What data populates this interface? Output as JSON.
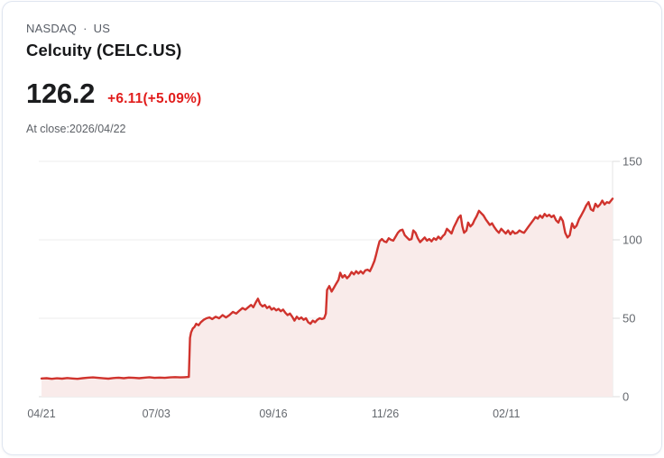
{
  "header": {
    "exchange": "NASDAQ",
    "separator": "·",
    "region": "US",
    "title": "Celcuity (CELC.US)",
    "price": "126.2",
    "change": "+6.11(+5.09%)",
    "as_of": "At close:2026/04/22"
  },
  "colors": {
    "line": "#d0332d",
    "fill": "#f9ebea",
    "change_text": "#e11d1c",
    "grid": "#ececec",
    "baseline": "#dcdcdc",
    "axis": "#e4e4e4",
    "tick_label": "#64686e"
  },
  "chart_data": {
    "type": "area",
    "title": "Celcuity (CELC.US) 1-year price",
    "xlabel": "",
    "ylabel": "",
    "ylim": [
      0,
      150
    ],
    "y_ticks": [
      0,
      50,
      100,
      150
    ],
    "x_tick_labels": [
      "04/21",
      "07/03",
      "09/16",
      "11/26",
      "02/11"
    ],
    "x_tick_positions": [
      0,
      0.201,
      0.406,
      0.602,
      0.814
    ],
    "grid": "horizontal",
    "legend": "none",
    "points": [
      [
        0.0,
        11.6
      ],
      [
        0.009,
        11.8
      ],
      [
        0.018,
        11.4
      ],
      [
        0.027,
        11.7
      ],
      [
        0.036,
        11.5
      ],
      [
        0.045,
        11.9
      ],
      [
        0.054,
        11.6
      ],
      [
        0.063,
        11.4
      ],
      [
        0.072,
        11.8
      ],
      [
        0.081,
        12.1
      ],
      [
        0.09,
        12.3
      ],
      [
        0.099,
        12.0
      ],
      [
        0.108,
        11.7
      ],
      [
        0.117,
        11.5
      ],
      [
        0.126,
        11.9
      ],
      [
        0.135,
        12.1
      ],
      [
        0.144,
        11.8
      ],
      [
        0.153,
        12.2
      ],
      [
        0.162,
        12.0
      ],
      [
        0.171,
        11.8
      ],
      [
        0.18,
        12.1
      ],
      [
        0.189,
        12.4
      ],
      [
        0.198,
        12.0
      ],
      [
        0.207,
        12.2
      ],
      [
        0.216,
        12.0
      ],
      [
        0.225,
        12.3
      ],
      [
        0.234,
        12.5
      ],
      [
        0.243,
        12.3
      ],
      [
        0.25,
        12.4
      ],
      [
        0.258,
        12.6
      ],
      [
        0.26,
        37.5
      ],
      [
        0.262,
        41.0
      ],
      [
        0.265,
        43.5
      ],
      [
        0.268,
        44.5
      ],
      [
        0.271,
        46.5
      ],
      [
        0.275,
        45.5
      ],
      [
        0.279,
        47.5
      ],
      [
        0.284,
        49.0
      ],
      [
        0.289,
        50.0
      ],
      [
        0.294,
        50.5
      ],
      [
        0.299,
        49.5
      ],
      [
        0.305,
        51.0
      ],
      [
        0.311,
        50.0
      ],
      [
        0.317,
        52.0
      ],
      [
        0.323,
        50.5
      ],
      [
        0.329,
        52.0
      ],
      [
        0.335,
        54.0
      ],
      [
        0.341,
        53.0
      ],
      [
        0.347,
        55.0
      ],
      [
        0.352,
        56.5
      ],
      [
        0.357,
        55.5
      ],
      [
        0.362,
        57.0
      ],
      [
        0.367,
        58.5
      ],
      [
        0.371,
        57.0
      ],
      [
        0.375,
        60.0
      ],
      [
        0.379,
        62.5
      ],
      [
        0.383,
        59.0
      ],
      [
        0.387,
        57.5
      ],
      [
        0.391,
        58.5
      ],
      [
        0.395,
        56.5
      ],
      [
        0.399,
        57.5
      ],
      [
        0.403,
        55.5
      ],
      [
        0.407,
        56.5
      ],
      [
        0.411,
        55.0
      ],
      [
        0.415,
        56.0
      ],
      [
        0.419,
        54.5
      ],
      [
        0.423,
        55.5
      ],
      [
        0.427,
        53.5
      ],
      [
        0.431,
        52.0
      ],
      [
        0.435,
        53.0
      ],
      [
        0.439,
        51.0
      ],
      [
        0.443,
        48.5
      ],
      [
        0.447,
        51.0
      ],
      [
        0.451,
        49.5
      ],
      [
        0.455,
        50.5
      ],
      [
        0.459,
        49.0
      ],
      [
        0.463,
        50.0
      ],
      [
        0.467,
        47.5
      ],
      [
        0.471,
        46.5
      ],
      [
        0.475,
        48.5
      ],
      [
        0.479,
        47.5
      ],
      [
        0.483,
        49.0
      ],
      [
        0.487,
        50.0
      ],
      [
        0.491,
        49.5
      ],
      [
        0.495,
        50.0
      ],
      [
        0.498,
        53.0
      ],
      [
        0.5,
        68.0
      ],
      [
        0.504,
        70.5
      ],
      [
        0.508,
        67.0
      ],
      [
        0.512,
        69.5
      ],
      [
        0.516,
        72.0
      ],
      [
        0.52,
        74.5
      ],
      [
        0.523,
        79.0
      ],
      [
        0.527,
        76.0
      ],
      [
        0.531,
        77.5
      ],
      [
        0.535,
        75.5
      ],
      [
        0.539,
        77.0
      ],
      [
        0.543,
        79.5
      ],
      [
        0.547,
        78.0
      ],
      [
        0.551,
        80.0
      ],
      [
        0.555,
        78.5
      ],
      [
        0.559,
        80.0
      ],
      [
        0.563,
        78.5
      ],
      [
        0.567,
        80.5
      ],
      [
        0.571,
        81.0
      ],
      [
        0.575,
        80.0
      ],
      [
        0.579,
        83.0
      ],
      [
        0.583,
        86.5
      ],
      [
        0.586,
        90.5
      ],
      [
        0.589,
        95.0
      ],
      [
        0.592,
        99.0
      ],
      [
        0.596,
        100.5
      ],
      [
        0.6,
        99.0
      ],
      [
        0.604,
        98.5
      ],
      [
        0.608,
        101.0
      ],
      [
        0.612,
        100.0
      ],
      [
        0.616,
        99.5
      ],
      [
        0.62,
        102.0
      ],
      [
        0.624,
        104.5
      ],
      [
        0.628,
        106.0
      ],
      [
        0.632,
        106.5
      ],
      [
        0.636,
        103.0
      ],
      [
        0.64,
        101.5
      ],
      [
        0.644,
        100.0
      ],
      [
        0.648,
        100.5
      ],
      [
        0.651,
        106.0
      ],
      [
        0.655,
        104.5
      ],
      [
        0.659,
        101.0
      ],
      [
        0.663,
        98.5
      ],
      [
        0.667,
        100.0
      ],
      [
        0.671,
        101.5
      ],
      [
        0.675,
        99.5
      ],
      [
        0.679,
        100.5
      ],
      [
        0.683,
        99.0
      ],
      [
        0.687,
        101.0
      ],
      [
        0.691,
        100.0
      ],
      [
        0.695,
        102.0
      ],
      [
        0.699,
        100.5
      ],
      [
        0.703,
        102.5
      ],
      [
        0.706,
        103.5
      ],
      [
        0.71,
        107.0
      ],
      [
        0.714,
        105.5
      ],
      [
        0.718,
        104.0
      ],
      [
        0.722,
        108.0
      ],
      [
        0.726,
        111.0
      ],
      [
        0.73,
        114.0
      ],
      [
        0.734,
        115.5
      ],
      [
        0.737,
        108.5
      ],
      [
        0.74,
        104.5
      ],
      [
        0.744,
        106.0
      ],
      [
        0.747,
        111.0
      ],
      [
        0.751,
        108.5
      ],
      [
        0.755,
        110.0
      ],
      [
        0.758,
        112.5
      ],
      [
        0.762,
        115.0
      ],
      [
        0.766,
        118.5
      ],
      [
        0.77,
        117.0
      ],
      [
        0.774,
        115.5
      ],
      [
        0.778,
        113.0
      ],
      [
        0.781,
        111.5
      ],
      [
        0.785,
        109.5
      ],
      [
        0.789,
        110.5
      ],
      [
        0.793,
        108.0
      ],
      [
        0.797,
        106.0
      ],
      [
        0.801,
        104.5
      ],
      [
        0.805,
        107.0
      ],
      [
        0.809,
        105.5
      ],
      [
        0.813,
        104.0
      ],
      [
        0.817,
        106.0
      ],
      [
        0.821,
        103.5
      ],
      [
        0.825,
        105.5
      ],
      [
        0.829,
        104.0
      ],
      [
        0.833,
        104.5
      ],
      [
        0.837,
        106.0
      ],
      [
        0.841,
        105.0
      ],
      [
        0.845,
        104.5
      ],
      [
        0.849,
        106.5
      ],
      [
        0.853,
        108.5
      ],
      [
        0.857,
        110.5
      ],
      [
        0.861,
        112.5
      ],
      [
        0.865,
        114.5
      ],
      [
        0.869,
        113.5
      ],
      [
        0.873,
        115.5
      ],
      [
        0.877,
        114.0
      ],
      [
        0.881,
        116.5
      ],
      [
        0.885,
        115.0
      ],
      [
        0.889,
        116.0
      ],
      [
        0.893,
        114.5
      ],
      [
        0.897,
        115.5
      ],
      [
        0.901,
        112.5
      ],
      [
        0.905,
        111.0
      ],
      [
        0.909,
        114.5
      ],
      [
        0.913,
        112.0
      ],
      [
        0.917,
        104.5
      ],
      [
        0.921,
        101.5
      ],
      [
        0.925,
        103.0
      ],
      [
        0.929,
        110.5
      ],
      [
        0.933,
        107.5
      ],
      [
        0.937,
        109.0
      ],
      [
        0.941,
        113.0
      ],
      [
        0.945,
        115.5
      ],
      [
        0.95,
        119.0
      ],
      [
        0.954,
        122.0
      ],
      [
        0.958,
        124.0
      ],
      [
        0.962,
        119.5
      ],
      [
        0.966,
        118.5
      ],
      [
        0.97,
        123.0
      ],
      [
        0.974,
        121.0
      ],
      [
        0.978,
        122.5
      ],
      [
        0.982,
        125.0
      ],
      [
        0.986,
        122.5
      ],
      [
        0.99,
        124.0
      ],
      [
        0.994,
        123.5
      ],
      [
        1.0,
        126.2
      ]
    ]
  }
}
